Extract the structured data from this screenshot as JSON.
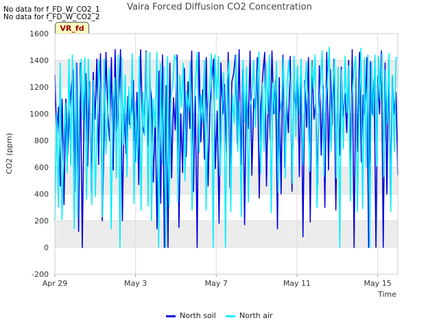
{
  "notes": [
    "No data for f_FD_W_CO2_1",
    "No data for f_FD_W_CO2_2"
  ],
  "badge": "VR_fd",
  "colors": {
    "north_soil": "#0000dd",
    "north_air": "#00eeff",
    "band": "#ececec",
    "grid": "#dddddd"
  },
  "chart_data": {
    "type": "line",
    "title": "Vaira Forced Diffusion CO2 Concentration",
    "xlabel": "Time",
    "ylabel": "CO2 (ppm)",
    "ylim": [
      -200,
      1600
    ],
    "yticks": [
      "-200",
      "0",
      "200",
      "400",
      "600",
      "800",
      "1000",
      "1200",
      "1400",
      "1600"
    ],
    "xlim": [
      "2016-04-29",
      "2016-05-16"
    ],
    "xticks": [
      "Apr 29",
      "May 3",
      "May 7",
      "May 11",
      "May 15"
    ],
    "grid": true,
    "legend_position": "bottom-center",
    "series": [
      {
        "name": "North soil",
        "color": "#0000dd",
        "t_start": "2016-04-29",
        "t_end": "2016-05-16",
        "values": [
          1290,
          830,
          1050,
          460,
          1110,
          320,
          1110,
          690,
          1010,
          1200,
          1330,
          420,
          1380,
          120,
          1380,
          0,
          1010,
          1300,
          610,
          1240,
          420,
          1310,
          960,
          1410,
          620,
          1450,
          200,
          840,
          1460,
          1000,
          800,
          1420,
          580,
          1480,
          870,
          1090,
          1480,
          200,
          1050,
          700,
          1130,
          920,
          1020,
          1250,
          640,
          1160,
          470,
          1480,
          910,
          850,
          1470,
          760,
          1240,
          1110,
          490,
          980,
          140,
          1320,
          330,
          1440,
          0,
          1210,
          0,
          1380,
          520,
          1120,
          880,
          1440,
          150,
          1000,
          560,
          1340,
          680,
          1240,
          890,
          1470,
          420,
          1130,
          0,
          1460,
          790,
          1180,
          660,
          1420,
          460,
          1060,
          1240,
          1410,
          590,
          1020,
          180,
          1380,
          1000,
          1220,
          710,
          1460,
          450,
          1240,
          1300,
          1440,
          780,
          1480,
          620,
          1330,
          170,
          1240,
          890,
          1470,
          540,
          1110,
          1000,
          1420,
          370,
          1070,
          1300,
          1460,
          460,
          1190,
          820,
          1470,
          1000,
          1250,
          140,
          1270,
          400,
          1440,
          600,
          1100,
          860,
          1430,
          420,
          1210,
          1000,
          1340,
          530,
          1380,
          80,
          1250,
          900,
          1420,
          190,
          1400,
          960,
          1080,
          470,
          1360,
          690,
          1210,
          300,
          1460,
          580,
          1330,
          920,
          1410,
          280,
          1200,
          690,
          1350,
          980,
          1150,
          860,
          1400,
          560,
          1480,
          0,
          1330,
          720,
          1460,
          640,
          1140,
          1000,
          1420,
          0,
          1390,
          1000,
          1260,
          0,
          1280,
          1000,
          1470,
          0,
          1380,
          400,
          1400,
          380,
          1280,
          1000,
          1160,
          540
        ]
      },
      {
        "name": "North air",
        "color": "#00eeff",
        "t_start": "2016-04-29",
        "t_end": "2016-05-16",
        "values": [
          200,
          1000,
          300,
          1380,
          210,
          720,
          1080,
          560,
          1410,
          610,
          1440,
          140,
          1380,
          220,
          1100,
          1410,
          960,
          1420,
          360,
          1410,
          960,
          320,
          1250,
          380,
          880,
          1400,
          1140,
          230,
          1410,
          700,
          1000,
          1340,
          140,
          1040,
          1270,
          520,
          1440,
          0,
          1420,
          770,
          1290,
          530,
          1200,
          890,
          1450,
          330,
          1090,
          640,
          1430,
          280,
          1160,
          840,
          1460,
          310,
          1460,
          200,
          1110,
          900,
          1460,
          0,
          1380,
          620,
          1350,
          0,
          1430,
          310,
          1120,
          1220,
          1440,
          1400,
          340,
          1290,
          1050,
          1380,
          500,
          1170,
          1020,
          1390,
          280,
          990,
          1270,
          1460,
          710,
          1140,
          940,
          1400,
          280,
          1050,
          1210,
          1450,
          0,
          1440,
          1110,
          1430,
          540,
          1010,
          1310,
          0,
          1250,
          1390,
          270,
          1140,
          930,
          1440,
          720,
          1090,
          230,
          1400,
          940,
          1350,
          340,
          1060,
          1120,
          1400,
          900,
          1230,
          1460,
          550,
          1230,
          720,
          1380,
          1000,
          1440,
          260,
          1230,
          1000,
          1390,
          410,
          1000,
          1110,
          1420,
          520,
          1220,
          1400,
          1140,
          480,
          1430,
          830,
          1360,
          1000,
          1410,
          620,
          1140,
          1390,
          980,
          570,
          1400,
          1190,
          1440,
          300,
          1020,
          1230,
          1470,
          530,
          1100,
          1250,
          1500,
          720,
          1170,
          1410,
          520,
          1350,
          0,
          1330,
          740,
          1430,
          1010,
          1360,
          350,
          1150,
          1310,
          1430,
          270,
          1070,
          1490,
          290,
          1420,
          600,
          1440,
          0,
          1380,
          980,
          1440,
          610,
          1430,
          1100,
          1450,
          530,
          1330,
          930,
          1450,
          270,
          1290,
          720,
          1420,
          1420
        ]
      }
    ]
  }
}
